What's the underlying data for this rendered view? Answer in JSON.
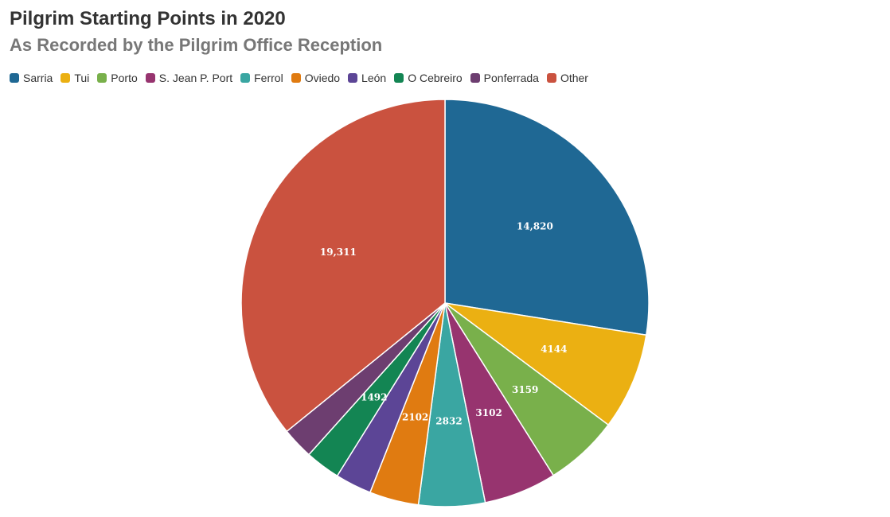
{
  "chart_data": {
    "type": "pie",
    "title": "Pilgrim Starting Points in 2020",
    "subtitle": "As Recorded by the Pilgrim Office Reception",
    "legend_position": "top-left",
    "slices": [
      {
        "label": "Sarria",
        "value": 14820,
        "display": "14,820",
        "color": "#1f6894"
      },
      {
        "label": "Tui",
        "value": 4144,
        "display": "4144",
        "color": "#ebb012"
      },
      {
        "label": "Porto",
        "value": 3159,
        "display": "3159",
        "color": "#79b04b"
      },
      {
        "label": "S. Jean P. Port",
        "value": 3102,
        "display": "3102",
        "color": "#97346f"
      },
      {
        "label": "Ferrol",
        "value": 2832,
        "display": "2832",
        "color": "#3aa6a2"
      },
      {
        "label": "Oviedo",
        "value": 2102,
        "display": "2102",
        "color": "#e07b11"
      },
      {
        "label": "León",
        "value": 1550,
        "display": "",
        "color": "#5c4596"
      },
      {
        "label": "O Cebreiro",
        "value": 1492,
        "display": "1492",
        "color": "#138553"
      },
      {
        "label": "Ponferrada",
        "value": 1350,
        "display": "",
        "color": "#6d3e70"
      },
      {
        "label": "Other",
        "value": 19311,
        "display": "19,311",
        "color": "#ca523f"
      }
    ]
  }
}
